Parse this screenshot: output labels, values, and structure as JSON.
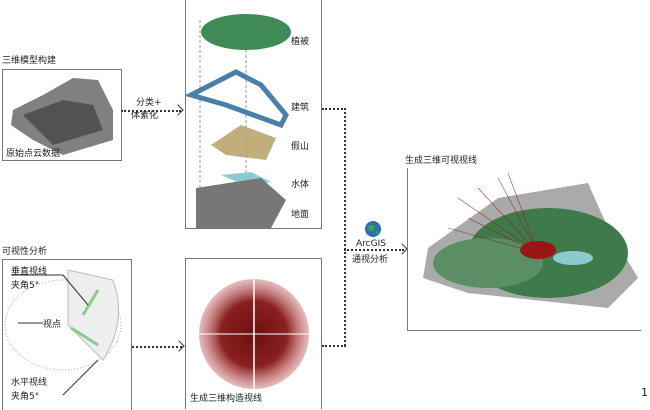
{
  "model_build": {
    "title": "三维模型构建",
    "raw_label": "原始点云数据"
  },
  "classify": {
    "line1": "分类+",
    "line2": "体素化"
  },
  "layers": [
    {
      "label": "植被",
      "color": "#3f8a55"
    },
    {
      "label": "建筑",
      "color": "#4a7fa8"
    },
    {
      "label": "假山",
      "color": "#b09a5a"
    },
    {
      "label": "水体",
      "color": "#8ccad0"
    },
    {
      "label": "地面",
      "color": "#777777"
    }
  ],
  "visibility": {
    "title": "可视性分析",
    "vertical": [
      "垂直视线",
      "夹角5°"
    ],
    "viewpoint": "视点",
    "horizontal": [
      "水平视线",
      "夹角5°"
    ]
  },
  "sightlines": {
    "label": "生成三维构造视线",
    "color": "#7a1515"
  },
  "arcgis": {
    "name": "ArcGIS",
    "label": "通视分析",
    "icon": "globe-icon"
  },
  "result": {
    "title": "生成三维可视视线"
  },
  "figure_number": "1"
}
